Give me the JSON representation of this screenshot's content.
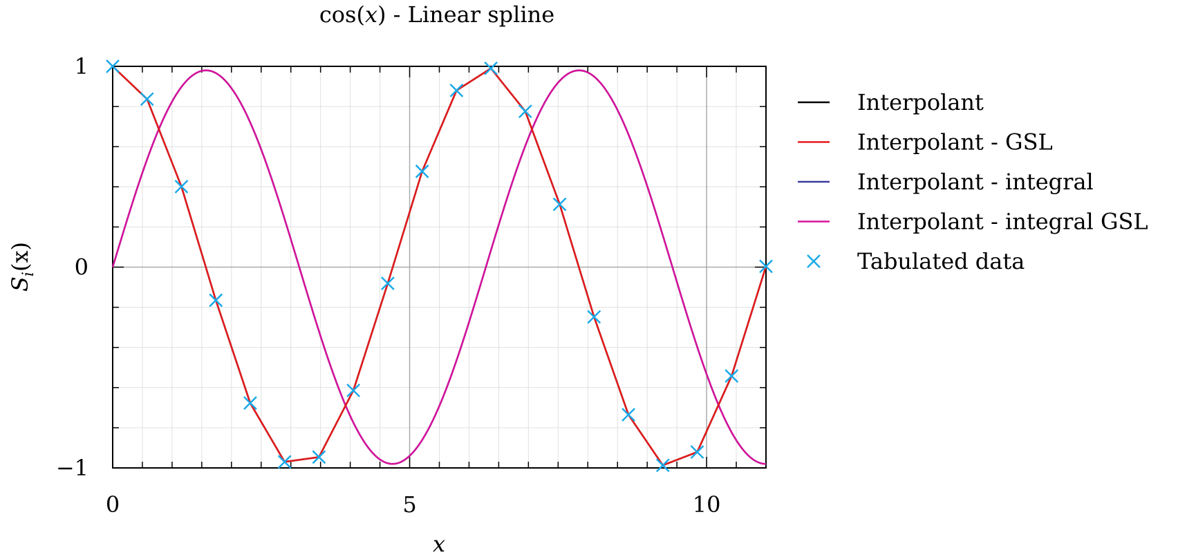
{
  "chart_data": {
    "type": "line",
    "title_pre": "cos(",
    "title_var": "x",
    "title_post": ") - Linear spline",
    "xlabel": "x",
    "ylabel_main": "S",
    "ylabel_sub": "i",
    "ylabel_post": "(x)",
    "xlim": [
      0,
      11
    ],
    "ylim": [
      -1,
      1
    ],
    "xticks": [
      0,
      5,
      10
    ],
    "xtick_labels": [
      "0",
      "5",
      "10"
    ],
    "yticks": [
      -1,
      0,
      1
    ],
    "ytick_labels": [
      "−1",
      "0",
      "1"
    ],
    "xminor_step": 0.5,
    "yminor_step": 0.2,
    "grid": true,
    "legend_position": "outside-right",
    "colors": {
      "interpolant": "#000000",
      "interpolant_gsl": "#e41a1c",
      "integral": "#3b3b9e",
      "integral_gsl": "#d6129a",
      "tabulated": "#1aa9e8"
    },
    "tabulated": {
      "x": [
        0,
        0.5789,
        1.1579,
        1.7368,
        2.3158,
        2.8947,
        3.4737,
        4.0526,
        4.6316,
        5.2105,
        5.7895,
        6.3684,
        6.9474,
        7.5263,
        8.1053,
        8.6842,
        9.2632,
        9.8421,
        10.4211,
        11.0
      ],
      "y": [
        1.0,
        0.837,
        0.401,
        -0.165,
        -0.677,
        -0.97,
        -0.946,
        -0.614,
        -0.081,
        0.477,
        0.88,
        0.99,
        0.776,
        0.313,
        -0.248,
        -0.735,
        -0.987,
        -0.921,
        -0.542,
        0.004
      ]
    },
    "integral_curve": {
      "function": "sin(x)",
      "x_range": [
        0,
        11
      ]
    },
    "legend": [
      {
        "key": "interpolant",
        "label": "Interpolant",
        "marker": "line"
      },
      {
        "key": "interpolant_gsl",
        "label": "Interpolant - GSL",
        "marker": "line"
      },
      {
        "key": "integral",
        "label": "Interpolant - integral",
        "marker": "line"
      },
      {
        "key": "integral_gsl",
        "label": "Interpolant - integral GSL",
        "marker": "line"
      },
      {
        "key": "tabulated",
        "label": "Tabulated data",
        "marker": "cross"
      }
    ]
  }
}
